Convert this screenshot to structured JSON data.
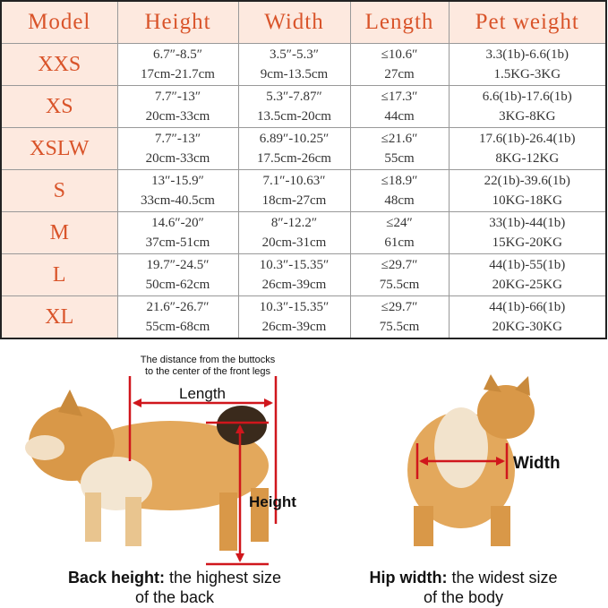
{
  "table": {
    "headers": [
      "Model",
      "Height",
      "Width",
      "Length",
      "Pet weight"
    ],
    "rows": [
      {
        "model": "XXS",
        "height": [
          "6.7″-8.5″",
          "17cm-21.7cm"
        ],
        "width": [
          "3.5″-5.3″",
          "9cm-13.5cm"
        ],
        "length": [
          "≤10.6″",
          "27cm"
        ],
        "weight": [
          "3.3(1b)-6.6(1b)",
          "1.5KG-3KG"
        ]
      },
      {
        "model": "XS",
        "height": [
          "7.7″-13″",
          "20cm-33cm"
        ],
        "width": [
          "5.3″-7.87″",
          "13.5cm-20cm"
        ],
        "length": [
          "≤17.3″",
          "44cm"
        ],
        "weight": [
          "6.6(1b)-17.6(1b)",
          "3KG-8KG"
        ]
      },
      {
        "model": "XSLW",
        "height": [
          "7.7″-13″",
          "20cm-33cm"
        ],
        "width": [
          "6.89″-10.25″",
          "17.5cm-26cm"
        ],
        "length": [
          "≤21.6″",
          "55cm"
        ],
        "weight": [
          "17.6(1b)-26.4(1b)",
          "8KG-12KG"
        ]
      },
      {
        "model": "S",
        "height": [
          "13″-15.9″",
          "33cm-40.5cm"
        ],
        "width": [
          "7.1″-10.63″",
          "18cm-27cm"
        ],
        "length": [
          "≤18.9″",
          "48cm"
        ],
        "weight": [
          "22(1b)-39.6(1b)",
          "10KG-18KG"
        ]
      },
      {
        "model": "M",
        "height": [
          "14.6″-20″",
          "37cm-51cm"
        ],
        "width": [
          "8″-12.2″",
          "20cm-31cm"
        ],
        "length": [
          "≤24″",
          "61cm"
        ],
        "weight": [
          "33(1b)-44(1b)",
          "15KG-20KG"
        ]
      },
      {
        "model": "L",
        "height": [
          "19.7″-24.5″",
          "50cm-62cm"
        ],
        "width": [
          "10.3″-15.35″",
          "26cm-39cm"
        ],
        "length": [
          "≤29.7″",
          "75.5cm"
        ],
        "weight": [
          "44(1b)-55(1b)",
          "20KG-25KG"
        ]
      },
      {
        "model": "XL",
        "height": [
          "21.6″-26.7″",
          "55cm-68cm"
        ],
        "width": [
          "10.3″-15.35″",
          "26cm-39cm"
        ],
        "length": [
          "≤29.7″",
          "75.5cm"
        ],
        "weight": [
          "44(1b)-66(1b)",
          "20KG-30KG"
        ]
      }
    ]
  },
  "diagram": {
    "length_note_1": "The distance from the buttocks",
    "length_note_2": "to the center of the front legs",
    "length_label": "Length",
    "height_label": "Height",
    "width_label": "Width",
    "back_caption_bold": "Back height:",
    "back_caption_1": " the highest size",
    "back_caption_2": "of the back",
    "hip_caption_bold": "Hip width:",
    "hip_caption_1": " the widest size",
    "hip_caption_2": "of the body"
  },
  "colors": {
    "accent": "#d9542a",
    "header_bg": "#fde9df",
    "arrow": "#d0161c"
  }
}
